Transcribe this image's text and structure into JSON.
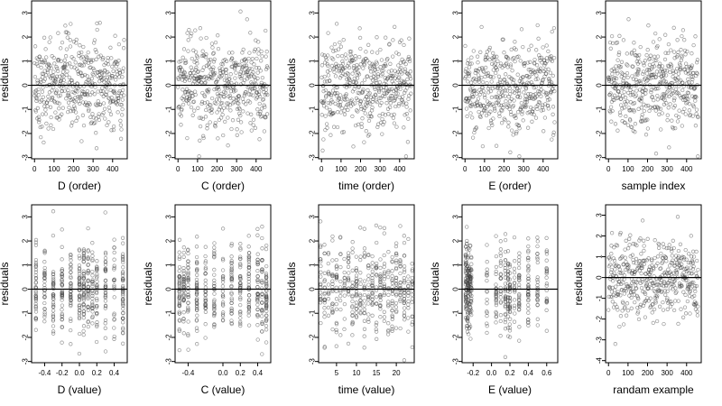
{
  "chart_data": [
    {
      "type": "scatter",
      "xlabel": "D (order)",
      "ylabel": "residuals",
      "xlim": [
        -15,
        475
      ],
      "ylim": [
        -3.05,
        3.5
      ],
      "xticks": [
        0,
        100,
        200,
        300,
        400
      ],
      "yticks": [
        -3,
        -2,
        -1,
        0,
        1,
        2,
        3
      ],
      "x_kind": "index",
      "n": 460,
      "reference_line": 0
    },
    {
      "type": "scatter",
      "xlabel": "C (order)",
      "ylabel": "residuals",
      "xlim": [
        -15,
        475
      ],
      "ylim": [
        -3.05,
        3.5
      ],
      "xticks": [
        0,
        100,
        200,
        300,
        400
      ],
      "yticks": [
        -3,
        -2,
        -1,
        0,
        1,
        2,
        3
      ],
      "x_kind": "index",
      "n": 460,
      "reference_line": 0
    },
    {
      "type": "scatter",
      "xlabel": "time (order)",
      "ylabel": "residuals",
      "xlim": [
        -15,
        475
      ],
      "ylim": [
        -3.05,
        3.5
      ],
      "xticks": [
        0,
        100,
        200,
        300,
        400
      ],
      "yticks": [
        -3,
        -2,
        -1,
        0,
        1,
        2,
        3
      ],
      "x_kind": "index",
      "n": 460,
      "reference_line": 0
    },
    {
      "type": "scatter",
      "xlabel": "E (order)",
      "ylabel": "residuals",
      "xlim": [
        -15,
        475
      ],
      "ylim": [
        -3.05,
        3.5
      ],
      "xticks": [
        0,
        100,
        200,
        300,
        400
      ],
      "yticks": [
        -3,
        -2,
        -1,
        0,
        1,
        2,
        3
      ],
      "x_kind": "index",
      "n": 460,
      "reference_line": 0
    },
    {
      "type": "scatter",
      "xlabel": "sample index",
      "ylabel": "residuals",
      "xlim": [
        -15,
        475
      ],
      "ylim": [
        -3.05,
        3.5
      ],
      "xticks": [
        0,
        100,
        200,
        300,
        400
      ],
      "yticks": [
        -3,
        -2,
        -1,
        0,
        1,
        2,
        3
      ],
      "x_kind": "index",
      "n": 460,
      "reference_line": 0
    },
    {
      "type": "scatter",
      "xlabel": "D (value)",
      "ylabel": "residuals",
      "xlim": [
        -0.55,
        0.55
      ],
      "ylim": [
        -3.05,
        3.5
      ],
      "xticks": [
        -0.4,
        -0.2,
        0.0,
        0.2,
        0.4
      ],
      "yticks": [
        -3,
        -2,
        -1,
        0,
        1,
        2,
        3
      ],
      "x_kind": "discrete",
      "x_levels": [
        -0.5,
        -0.4,
        -0.3,
        -0.2,
        -0.1,
        0.0,
        0.05,
        0.1,
        0.15,
        0.2,
        0.3,
        0.4,
        0.5
      ],
      "n": 460,
      "reference_line": 0
    },
    {
      "type": "scatter",
      "xlabel": "C (value)",
      "ylabel": "residuals",
      "xlim": [
        -0.55,
        0.55
      ],
      "ylim": [
        -3.05,
        3.5
      ],
      "xticks": [
        -0.4,
        0.0,
        0.2,
        0.4
      ],
      "yticks": [
        -3,
        -2,
        -1,
        0,
        1,
        2,
        3
      ],
      "x_kind": "discrete",
      "x_levels": [
        -0.5,
        -0.45,
        -0.4,
        -0.3,
        -0.2,
        -0.1,
        0.0,
        0.1,
        0.2,
        0.3,
        0.4,
        0.45,
        0.5
      ],
      "n": 460,
      "reference_line": 0
    },
    {
      "type": "scatter",
      "xlabel": "time (value)",
      "ylabel": "residuals",
      "xlim": [
        0.5,
        24.5
      ],
      "ylim": [
        -3.05,
        3.5
      ],
      "xticks": [
        5,
        10,
        15,
        20
      ],
      "yticks": [
        -3,
        -2,
        -1,
        0,
        1,
        2,
        3
      ],
      "x_kind": "discrete",
      "x_levels": [
        1,
        2,
        3,
        4,
        5,
        6,
        7,
        8,
        9,
        10,
        11,
        12,
        13,
        14,
        15,
        16,
        17,
        18,
        19,
        20,
        21,
        22,
        23,
        24
      ],
      "n": 460,
      "reference_line": 0
    },
    {
      "type": "scatter",
      "xlabel": "E (value)",
      "ylabel": "residuals",
      "xlim": [
        -0.32,
        0.72
      ],
      "ylim": [
        -3.05,
        3.5
      ],
      "xticks": [
        -0.2,
        0.0,
        0.2,
        0.4,
        0.6
      ],
      "yticks": [
        -3,
        -2,
        -1,
        0,
        1,
        2,
        3
      ],
      "x_kind": "discrete",
      "x_levels": [
        -0.28,
        -0.27,
        -0.26,
        -0.25,
        -0.24,
        -0.23,
        -0.22,
        -0.05,
        0.05,
        0.1,
        0.15,
        0.18,
        0.2,
        0.25,
        0.3,
        0.4,
        0.5,
        0.6
      ],
      "n": 460,
      "reference_line": 0
    },
    {
      "type": "scatter",
      "xlabel": "randam example",
      "ylabel": "residuals",
      "xlim": [
        -15,
        475
      ],
      "ylim": [
        -4.1,
        3.5
      ],
      "xticks": [
        0,
        100,
        200,
        300,
        400
      ],
      "yticks": [
        -4,
        -3,
        -2,
        -1,
        0,
        1,
        2,
        3
      ],
      "x_kind": "index",
      "n": 460,
      "reference_line": 0
    }
  ]
}
